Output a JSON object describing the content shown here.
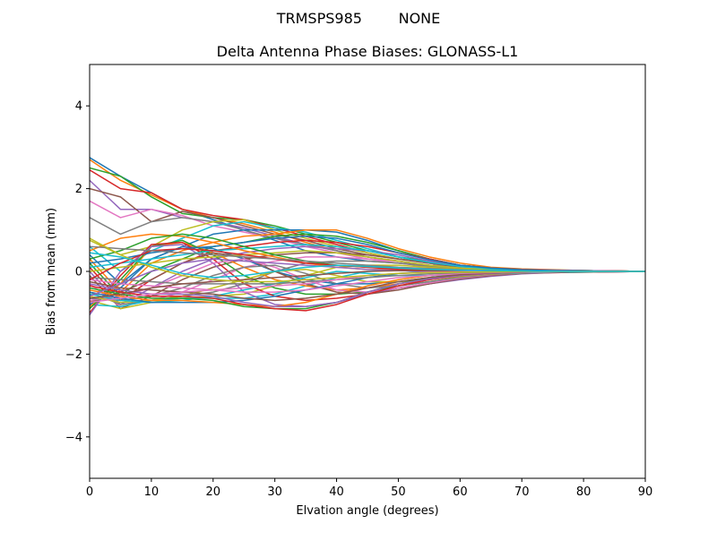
{
  "suptitle": "TRMSPS985        NONE",
  "chart_data": {
    "type": "line",
    "title": "Delta Antenna Phase Biases: GLONASS-L1",
    "xlabel": "Elvation angle (degrees)",
    "ylabel": "Bias from mean (mm)",
    "xlim": [
      0,
      90
    ],
    "ylim": [
      -5,
      5
    ],
    "x_ticks": [
      0,
      10,
      20,
      30,
      40,
      50,
      60,
      70,
      80,
      90
    ],
    "y_ticks": [
      -4,
      -2,
      0,
      2,
      4
    ],
    "y_tick_labels": [
      "−4",
      "−2",
      "0",
      "2",
      "4"
    ],
    "grid": false,
    "legend": "none",
    "colors": [
      "#1f77b4",
      "#ff7f0e",
      "#2ca02c",
      "#d62728",
      "#9467bd",
      "#8c564b",
      "#e377c2",
      "#7f7f7f",
      "#bcbd22",
      "#17becf"
    ],
    "x": [
      0,
      5,
      10,
      15,
      20,
      25,
      30,
      35,
      40,
      45,
      50,
      55,
      60,
      65,
      70,
      75,
      80,
      85,
      90
    ],
    "series": [
      {
        "values": [
          2.75,
          2.3,
          1.9,
          1.5,
          1.25,
          1.0,
          0.75,
          0.5,
          0.35,
          0.25,
          0.2,
          0.15,
          0.1,
          0.05,
          0.03,
          0.02,
          0.01,
          0.0,
          0.0
        ]
      },
      {
        "values": [
          2.7,
          2.2,
          1.85,
          1.5,
          1.3,
          1.15,
          0.95,
          0.7,
          0.5,
          0.35,
          0.25,
          0.15,
          0.1,
          0.05,
          0.03,
          0.02,
          0.01,
          0.0,
          0.0
        ]
      },
      {
        "values": [
          2.5,
          2.3,
          1.8,
          1.4,
          1.3,
          1.25,
          1.1,
          0.9,
          0.7,
          0.5,
          0.35,
          0.25,
          0.15,
          0.08,
          0.05,
          0.03,
          0.02,
          0.01,
          0.0
        ]
      },
      {
        "values": [
          2.45,
          2.0,
          1.9,
          1.5,
          1.35,
          1.25,
          1.05,
          0.85,
          0.65,
          0.45,
          0.3,
          0.2,
          0.1,
          0.06,
          0.04,
          0.03,
          0.02,
          0.01,
          0.0
        ]
      },
      {
        "values": [
          2.2,
          1.5,
          1.5,
          1.3,
          1.2,
          1.05,
          0.85,
          0.65,
          0.5,
          0.35,
          0.25,
          0.15,
          0.1,
          0.05,
          0.03,
          0.02,
          0.01,
          0.0,
          0.0
        ]
      },
      {
        "values": [
          2.0,
          1.8,
          1.2,
          1.45,
          1.3,
          1.1,
          0.9,
          0.75,
          0.55,
          0.4,
          0.3,
          0.2,
          0.1,
          0.06,
          0.04,
          0.02,
          0.01,
          0.0,
          0.0
        ]
      },
      {
        "values": [
          1.7,
          1.3,
          1.5,
          1.35,
          1.1,
          0.95,
          0.8,
          0.6,
          0.45,
          0.3,
          0.2,
          0.12,
          0.08,
          0.05,
          0.03,
          0.02,
          0.01,
          0.0,
          0.0
        ]
      },
      {
        "values": [
          1.3,
          0.9,
          1.2,
          1.3,
          1.2,
          1.0,
          0.8,
          0.65,
          0.5,
          0.35,
          0.25,
          0.15,
          0.1,
          0.05,
          0.03,
          0.02,
          0.01,
          0.0,
          0.0
        ]
      },
      {
        "values": [
          0.75,
          0.4,
          0.6,
          1.0,
          1.2,
          1.25,
          1.0,
          0.8,
          0.6,
          0.45,
          0.3,
          0.2,
          0.1,
          0.06,
          0.04,
          0.02,
          0.01,
          0.0,
          0.0
        ]
      },
      {
        "values": [
          0.6,
          0.0,
          0.5,
          0.8,
          1.1,
          1.2,
          1.05,
          0.95,
          0.75,
          0.55,
          0.35,
          0.2,
          0.1,
          0.06,
          0.04,
          0.02,
          0.01,
          0.0,
          0.0
        ]
      },
      {
        "values": [
          0.4,
          -0.3,
          0.3,
          0.6,
          0.9,
          1.0,
          1.0,
          1.0,
          0.95,
          0.75,
          0.5,
          0.3,
          0.15,
          0.08,
          0.05,
          0.03,
          0.02,
          0.01,
          0.0
        ]
      },
      {
        "values": [
          0.3,
          -0.5,
          0.2,
          0.5,
          0.7,
          0.85,
          0.9,
          1.0,
          1.0,
          0.8,
          0.55,
          0.35,
          0.2,
          0.1,
          0.06,
          0.04,
          0.02,
          0.01,
          0.0
        ]
      },
      {
        "values": [
          0.2,
          -0.6,
          0.0,
          0.3,
          0.6,
          0.7,
          0.85,
          0.9,
          0.85,
          0.7,
          0.5,
          0.3,
          0.15,
          0.08,
          0.05,
          0.03,
          0.02,
          0.01,
          0.0
        ]
      },
      {
        "values": [
          0.1,
          -0.7,
          -0.2,
          0.2,
          0.5,
          0.6,
          0.7,
          0.75,
          0.7,
          0.6,
          0.45,
          0.3,
          0.15,
          0.08,
          0.05,
          0.03,
          0.02,
          0.01,
          0.0
        ]
      },
      {
        "values": [
          0.0,
          -0.8,
          -0.4,
          0.0,
          0.3,
          0.45,
          0.55,
          0.6,
          0.55,
          0.5,
          0.4,
          0.25,
          0.12,
          0.06,
          0.04,
          0.03,
          0.02,
          0.01,
          0.0
        ]
      },
      {
        "values": [
          -0.1,
          -0.9,
          -0.6,
          -0.2,
          0.1,
          0.3,
          0.4,
          0.45,
          0.45,
          0.4,
          0.3,
          0.2,
          0.1,
          0.05,
          0.03,
          0.02,
          0.01,
          0.0,
          0.0
        ]
      },
      {
        "values": [
          -0.3,
          -0.85,
          -0.7,
          -0.5,
          -0.2,
          0.1,
          0.25,
          0.35,
          0.35,
          0.3,
          0.25,
          0.15,
          0.08,
          0.04,
          0.03,
          0.02,
          0.01,
          0.0,
          0.0
        ]
      },
      {
        "values": [
          -0.5,
          -0.8,
          -0.7,
          -0.6,
          -0.5,
          -0.3,
          0.0,
          0.2,
          0.25,
          0.25,
          0.2,
          0.12,
          0.06,
          0.03,
          0.02,
          0.01,
          0.01,
          0.0,
          0.0
        ]
      },
      {
        "values": [
          -0.7,
          -0.9,
          -0.75,
          -0.65,
          -0.6,
          -0.55,
          -0.35,
          -0.1,
          0.1,
          0.15,
          0.15,
          0.1,
          0.05,
          0.03,
          0.02,
          0.01,
          0.0,
          0.0,
          0.0
        ]
      },
      {
        "values": [
          -0.8,
          -0.85,
          -0.7,
          -0.65,
          -0.65,
          -0.65,
          -0.55,
          -0.35,
          -0.15,
          0.0,
          0.05,
          0.05,
          0.03,
          0.02,
          0.01,
          0.01,
          0.0,
          0.0,
          0.0
        ]
      },
      {
        "values": [
          -0.8,
          -0.4,
          0.3,
          0.6,
          0.55,
          0.3,
          0.0,
          -0.2,
          -0.3,
          -0.3,
          -0.25,
          -0.15,
          -0.08,
          -0.04,
          -0.02,
          -0.01,
          0.0,
          0.0,
          0.0
        ]
      },
      {
        "values": [
          -0.85,
          -0.3,
          0.6,
          0.7,
          0.45,
          0.1,
          -0.2,
          -0.35,
          -0.45,
          -0.4,
          -0.3,
          -0.2,
          -0.1,
          -0.05,
          -0.03,
          -0.02,
          -0.01,
          0.0,
          0.0
        ]
      },
      {
        "values": [
          -0.9,
          -0.2,
          0.6,
          0.75,
          0.4,
          -0.1,
          -0.4,
          -0.55,
          -0.55,
          -0.5,
          -0.35,
          -0.25,
          -0.15,
          -0.08,
          -0.04,
          -0.02,
          -0.01,
          0.0,
          0.0
        ]
      },
      {
        "values": [
          -1.0,
          -0.1,
          0.65,
          0.7,
          0.3,
          -0.3,
          -0.6,
          -0.7,
          -0.65,
          -0.55,
          -0.4,
          -0.3,
          -0.18,
          -0.1,
          -0.05,
          -0.03,
          -0.02,
          -0.01,
          0.0
        ]
      },
      {
        "values": [
          -1.05,
          0.0,
          0.6,
          0.65,
          0.2,
          -0.5,
          -0.8,
          -0.85,
          -0.75,
          -0.55,
          -0.4,
          -0.3,
          -0.2,
          -0.12,
          -0.06,
          -0.03,
          -0.02,
          -0.01,
          0.0
        ]
      },
      {
        "values": [
          -0.75,
          -0.5,
          -0.2,
          0.2,
          0.45,
          0.35,
          0.0,
          -0.3,
          -0.5,
          -0.55,
          -0.45,
          -0.3,
          -0.18,
          -0.1,
          -0.05,
          -0.03,
          -0.02,
          -0.01,
          0.0
        ]
      },
      {
        "values": [
          -0.7,
          -0.6,
          -0.4,
          -0.1,
          0.2,
          0.3,
          0.1,
          -0.2,
          -0.45,
          -0.5,
          -0.4,
          -0.28,
          -0.16,
          -0.08,
          -0.04,
          -0.02,
          -0.01,
          0.0,
          0.0
        ]
      },
      {
        "values": [
          -0.65,
          -0.7,
          -0.6,
          -0.4,
          -0.1,
          0.1,
          0.15,
          -0.05,
          -0.3,
          -0.4,
          -0.35,
          -0.25,
          -0.14,
          -0.07,
          -0.04,
          -0.02,
          -0.01,
          0.0,
          0.0
        ]
      },
      {
        "values": [
          -0.6,
          -0.75,
          -0.7,
          -0.6,
          -0.4,
          -0.2,
          0.0,
          0.05,
          -0.1,
          -0.25,
          -0.25,
          -0.2,
          -0.12,
          -0.06,
          -0.03,
          -0.02,
          -0.01,
          0.0,
          0.0
        ]
      },
      {
        "values": [
          -0.55,
          -0.7,
          -0.75,
          -0.7,
          -0.6,
          -0.45,
          -0.3,
          -0.15,
          0.0,
          -0.05,
          -0.1,
          -0.1,
          -0.08,
          -0.05,
          -0.03,
          -0.02,
          -0.01,
          0.0,
          0.0
        ]
      },
      {
        "values": [
          -0.5,
          -0.65,
          -0.75,
          -0.75,
          -0.75,
          -0.7,
          -0.6,
          -0.45,
          -0.3,
          -0.15,
          -0.05,
          0.0,
          -0.02,
          -0.02,
          -0.01,
          -0.01,
          0.0,
          0.0,
          0.0
        ]
      },
      {
        "values": [
          -0.45,
          -0.6,
          -0.7,
          -0.7,
          -0.75,
          -0.8,
          -0.85,
          -0.75,
          -0.55,
          -0.35,
          -0.2,
          -0.1,
          -0.05,
          -0.02,
          -0.01,
          0.0,
          0.0,
          0.0,
          0.0
        ]
      },
      {
        "values": [
          -0.4,
          -0.55,
          -0.65,
          -0.65,
          -0.7,
          -0.85,
          -0.9,
          -0.9,
          -0.75,
          -0.5,
          -0.3,
          -0.15,
          -0.08,
          -0.04,
          -0.02,
          -0.01,
          0.0,
          0.0,
          0.0
        ]
      },
      {
        "values": [
          -0.35,
          -0.5,
          -0.6,
          -0.6,
          -0.65,
          -0.8,
          -0.9,
          -0.95,
          -0.8,
          -0.55,
          -0.35,
          -0.2,
          -0.1,
          -0.05,
          -0.02,
          -0.01,
          0.0,
          0.0,
          0.0
        ]
      },
      {
        "values": [
          -0.3,
          -0.45,
          -0.55,
          -0.55,
          -0.6,
          -0.75,
          -0.85,
          -0.85,
          -0.75,
          -0.5,
          -0.3,
          -0.18,
          -0.1,
          -0.05,
          -0.02,
          -0.01,
          0.0,
          0.0,
          0.0
        ]
      },
      {
        "values": [
          -0.25,
          -0.4,
          -0.45,
          -0.5,
          -0.55,
          -0.65,
          -0.7,
          -0.65,
          -0.55,
          -0.4,
          -0.25,
          -0.15,
          -0.08,
          -0.04,
          -0.02,
          -0.01,
          0.0,
          0.0,
          0.0
        ]
      },
      {
        "values": [
          -0.2,
          -0.3,
          -0.35,
          -0.4,
          -0.45,
          -0.5,
          -0.5,
          -0.45,
          -0.35,
          -0.25,
          -0.15,
          -0.1,
          -0.05,
          -0.03,
          -0.02,
          -0.01,
          0.0,
          0.0,
          0.0
        ]
      },
      {
        "values": [
          -0.15,
          -0.2,
          -0.25,
          -0.3,
          -0.3,
          -0.3,
          -0.3,
          -0.25,
          -0.2,
          -0.15,
          -0.1,
          -0.06,
          -0.03,
          -0.02,
          -0.01,
          0.0,
          0.0,
          0.0,
          0.0
        ]
      },
      {
        "values": [
          0.0,
          0.1,
          0.2,
          0.3,
          0.35,
          0.4,
          0.45,
          0.5,
          0.45,
          0.35,
          0.25,
          0.15,
          0.08,
          0.04,
          0.02,
          0.01,
          0.0,
          0.0,
          0.0
        ]
      },
      {
        "values": [
          0.1,
          0.2,
          0.3,
          0.4,
          0.5,
          0.55,
          0.6,
          0.65,
          0.6,
          0.5,
          0.35,
          0.22,
          0.12,
          0.06,
          0.03,
          0.02,
          0.01,
          0.0,
          0.0
        ]
      },
      {
        "values": [
          0.2,
          0.3,
          0.45,
          0.55,
          0.6,
          0.7,
          0.8,
          0.85,
          0.8,
          0.65,
          0.45,
          0.28,
          0.15,
          0.08,
          0.04,
          0.02,
          0.01,
          0.0,
          0.0
        ]
      },
      {
        "values": [
          0.5,
          0.8,
          0.9,
          0.85,
          0.7,
          0.5,
          0.35,
          0.2,
          0.1,
          0.05,
          0.05,
          0.04,
          0.03,
          0.02,
          0.01,
          0.0,
          0.0,
          0.0,
          0.0
        ]
      },
      {
        "values": [
          0.3,
          0.5,
          0.8,
          0.9,
          0.8,
          0.6,
          0.4,
          0.25,
          0.15,
          0.1,
          0.08,
          0.05,
          0.03,
          0.02,
          0.01,
          0.0,
          0.0,
          0.0,
          0.0
        ]
      },
      {
        "values": [
          -0.2,
          0.2,
          0.5,
          0.55,
          0.5,
          0.4,
          0.3,
          0.2,
          0.15,
          0.1,
          0.05,
          0.03,
          0.02,
          0.01,
          0.0,
          0.0,
          0.0,
          0.0,
          0.0
        ]
      },
      {
        "values": [
          -0.6,
          -0.3,
          0.0,
          0.2,
          0.3,
          0.25,
          0.2,
          0.15,
          0.1,
          0.05,
          0.02,
          0.0,
          0.0,
          0.0,
          0.0,
          0.0,
          0.0,
          0.0,
          0.0
        ]
      },
      {
        "values": [
          -0.65,
          -0.55,
          -0.4,
          -0.3,
          -0.25,
          -0.2,
          -0.15,
          -0.1,
          -0.05,
          0.0,
          0.02,
          0.02,
          0.01,
          0.0,
          0.0,
          0.0,
          0.0,
          0.0,
          0.0
        ]
      },
      {
        "values": [
          -0.75,
          -0.65,
          -0.55,
          -0.5,
          -0.45,
          -0.4,
          -0.35,
          -0.3,
          -0.2,
          -0.1,
          -0.05,
          -0.02,
          -0.01,
          0.0,
          0.0,
          0.0,
          0.0,
          0.0,
          0.0
        ]
      },
      {
        "values": [
          0.6,
          0.55,
          0.5,
          0.45,
          0.4,
          0.35,
          0.3,
          0.25,
          0.2,
          0.15,
          0.1,
          0.07,
          0.04,
          0.02,
          0.01,
          0.0,
          0.0,
          0.0,
          0.0
        ]
      },
      {
        "values": [
          0.8,
          0.4,
          0.1,
          -0.1,
          -0.2,
          -0.25,
          -0.25,
          -0.2,
          -0.15,
          -0.1,
          -0.05,
          -0.03,
          -0.02,
          -0.01,
          0.0,
          0.0,
          0.0,
          0.0,
          0.0
        ]
      },
      {
        "values": [
          0.45,
          0.35,
          0.15,
          -0.05,
          -0.15,
          -0.1,
          0.0,
          0.1,
          0.15,
          0.12,
          0.08,
          0.05,
          0.03,
          0.02,
          0.01,
          0.0,
          0.0,
          0.0,
          0.0
        ]
      }
    ]
  }
}
